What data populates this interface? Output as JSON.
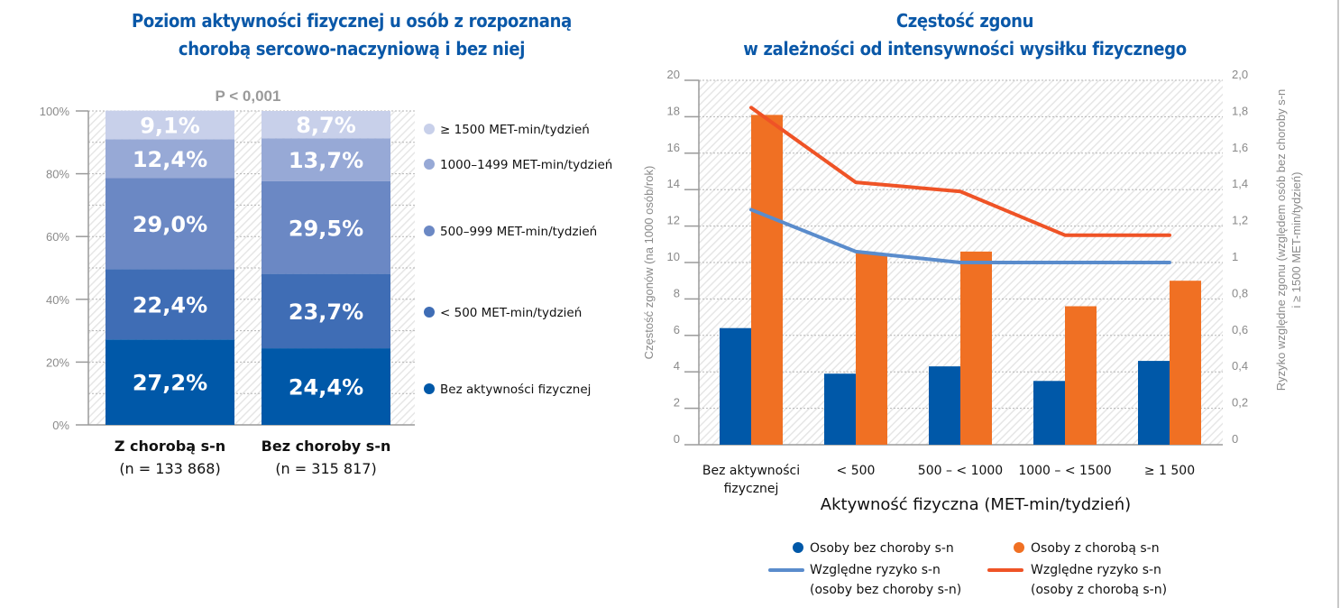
{
  "left_chart": {
    "title_line1": "Poziom aktywności fizycznej u osób z rozpoznaną",
    "title_line2": "chorobą sercowo-naczyniową i bez niej",
    "pvalue": "P < 0,001"
  },
  "right_chart": {
    "title_line1": "Częstość zgonu",
    "title_line2": "w zależności od intensywności wysiłku fizycznego"
  },
  "chart_data": [
    {
      "type": "bar",
      "stacked": true,
      "title": "Poziom aktywności fizycznej u osób z rozpoznaną chorobą sercowo-naczyniową i bez niej",
      "annotation": "P < 0,001",
      "categories": [
        "Z chorobą s-n",
        "Bez choroby s-n"
      ],
      "category_sublabels": [
        "(n = 133 868)",
        "(n = 315 817)"
      ],
      "series": [
        {
          "name": "Bez aktywności fizycznej",
          "color": "#0058a8",
          "values": [
            27.2,
            24.4
          ],
          "labels": [
            "27,2%",
            "24,4%"
          ]
        },
        {
          "name": "< 500 MET-min/tydzień",
          "color": "#3f6db5",
          "values": [
            22.4,
            23.7
          ],
          "labels": [
            "22,4%",
            "23,7%"
          ]
        },
        {
          "name": "500–999 MET-min/tydzień",
          "color": "#6b88c4",
          "values": [
            29.0,
            29.5
          ],
          "labels": [
            "29,0%",
            "29,5%"
          ]
        },
        {
          "name": "1000–1499 MET-min/tydzień",
          "color": "#97a9d6",
          "values": [
            12.4,
            13.7
          ],
          "labels": [
            "12,4%",
            "13,7%"
          ]
        },
        {
          "name": "≥ 1500 MET-min/tydzień",
          "color": "#c8d0ea",
          "values": [
            9.1,
            8.7
          ],
          "labels": [
            "9,1%",
            "8,7%"
          ]
        }
      ],
      "legend_order": [
        "≥ 1500 MET-min/tydzień",
        "1000–1499 MET-min/tydzień",
        "500–999 MET-min/tydzień",
        "< 500 MET-min/tydzień",
        "Bez aktywności fizycznej"
      ],
      "ylim": [
        0,
        100
      ],
      "yticks": [
        "0%",
        "20%",
        "40%",
        "60%",
        "80%",
        "100%"
      ],
      "grid": true,
      "legend": "right"
    },
    {
      "type": "bar",
      "combo": "bar+line",
      "title": "Częstość zgonu w zależności od intensywności wysiłku fizycznego",
      "xlabel": "Aktywność fizyczna (MET-min/tydzień)",
      "ylabel": "Częstość zgonów (na 1000 osób/rok)",
      "y2label_line1": "Ryzyko względne zgonu (względem osób bez choroby s-n",
      "y2label_line2": "i ≥ 1500 MET-min/tydzień)",
      "categories": [
        [
          "Bez aktywności",
          "fizycznej"
        ],
        [
          "< 500"
        ],
        [
          "500 – < 1000"
        ],
        [
          "1000 – < 1500"
        ],
        [
          "≥ 1 500"
        ]
      ],
      "ylim": [
        0,
        20
      ],
      "yticks": [
        "0",
        "2",
        "4",
        "6",
        "8",
        "10",
        "12",
        "14",
        "16",
        "18",
        "20"
      ],
      "y2lim": [
        0,
        2
      ],
      "y2ticks": [
        "0",
        "0,2",
        "0,4",
        "0,6",
        "0,8",
        "1",
        "1,2",
        "1,4",
        "1,6",
        "1,8",
        "2,0"
      ],
      "series": [
        {
          "name": "Osoby bez choroby s-n",
          "kind": "bar",
          "axis": "left",
          "color": "#0058a8",
          "values": [
            6.4,
            3.9,
            4.3,
            3.5,
            4.6
          ]
        },
        {
          "name": "Osoby z chorobą s-n",
          "kind": "bar",
          "axis": "left",
          "color": "#f07023",
          "values": [
            18.1,
            10.5,
            10.6,
            7.6,
            9.0
          ]
        },
        {
          "name": "Względne ryzyko s-n (osoby bez choroby s-n)",
          "label_line1": "Względne ryzyko s-n",
          "label_line2": "(osoby bez choroby s-n)",
          "kind": "line",
          "axis": "right",
          "color": "#5a8ccc",
          "values": [
            1.29,
            1.06,
            1.0,
            1.0,
            1.0
          ]
        },
        {
          "name": "Względne ryzyko s-n (osoby z chorobą s-n)",
          "label_line1": "Względne ryzyko s-n",
          "label_line2": "(osoby z chorobą s-n)",
          "kind": "line",
          "axis": "right",
          "color": "#ef5326",
          "values": [
            1.85,
            1.44,
            1.39,
            1.15,
            1.15
          ]
        }
      ],
      "grid": true,
      "legend": "bottom"
    }
  ]
}
